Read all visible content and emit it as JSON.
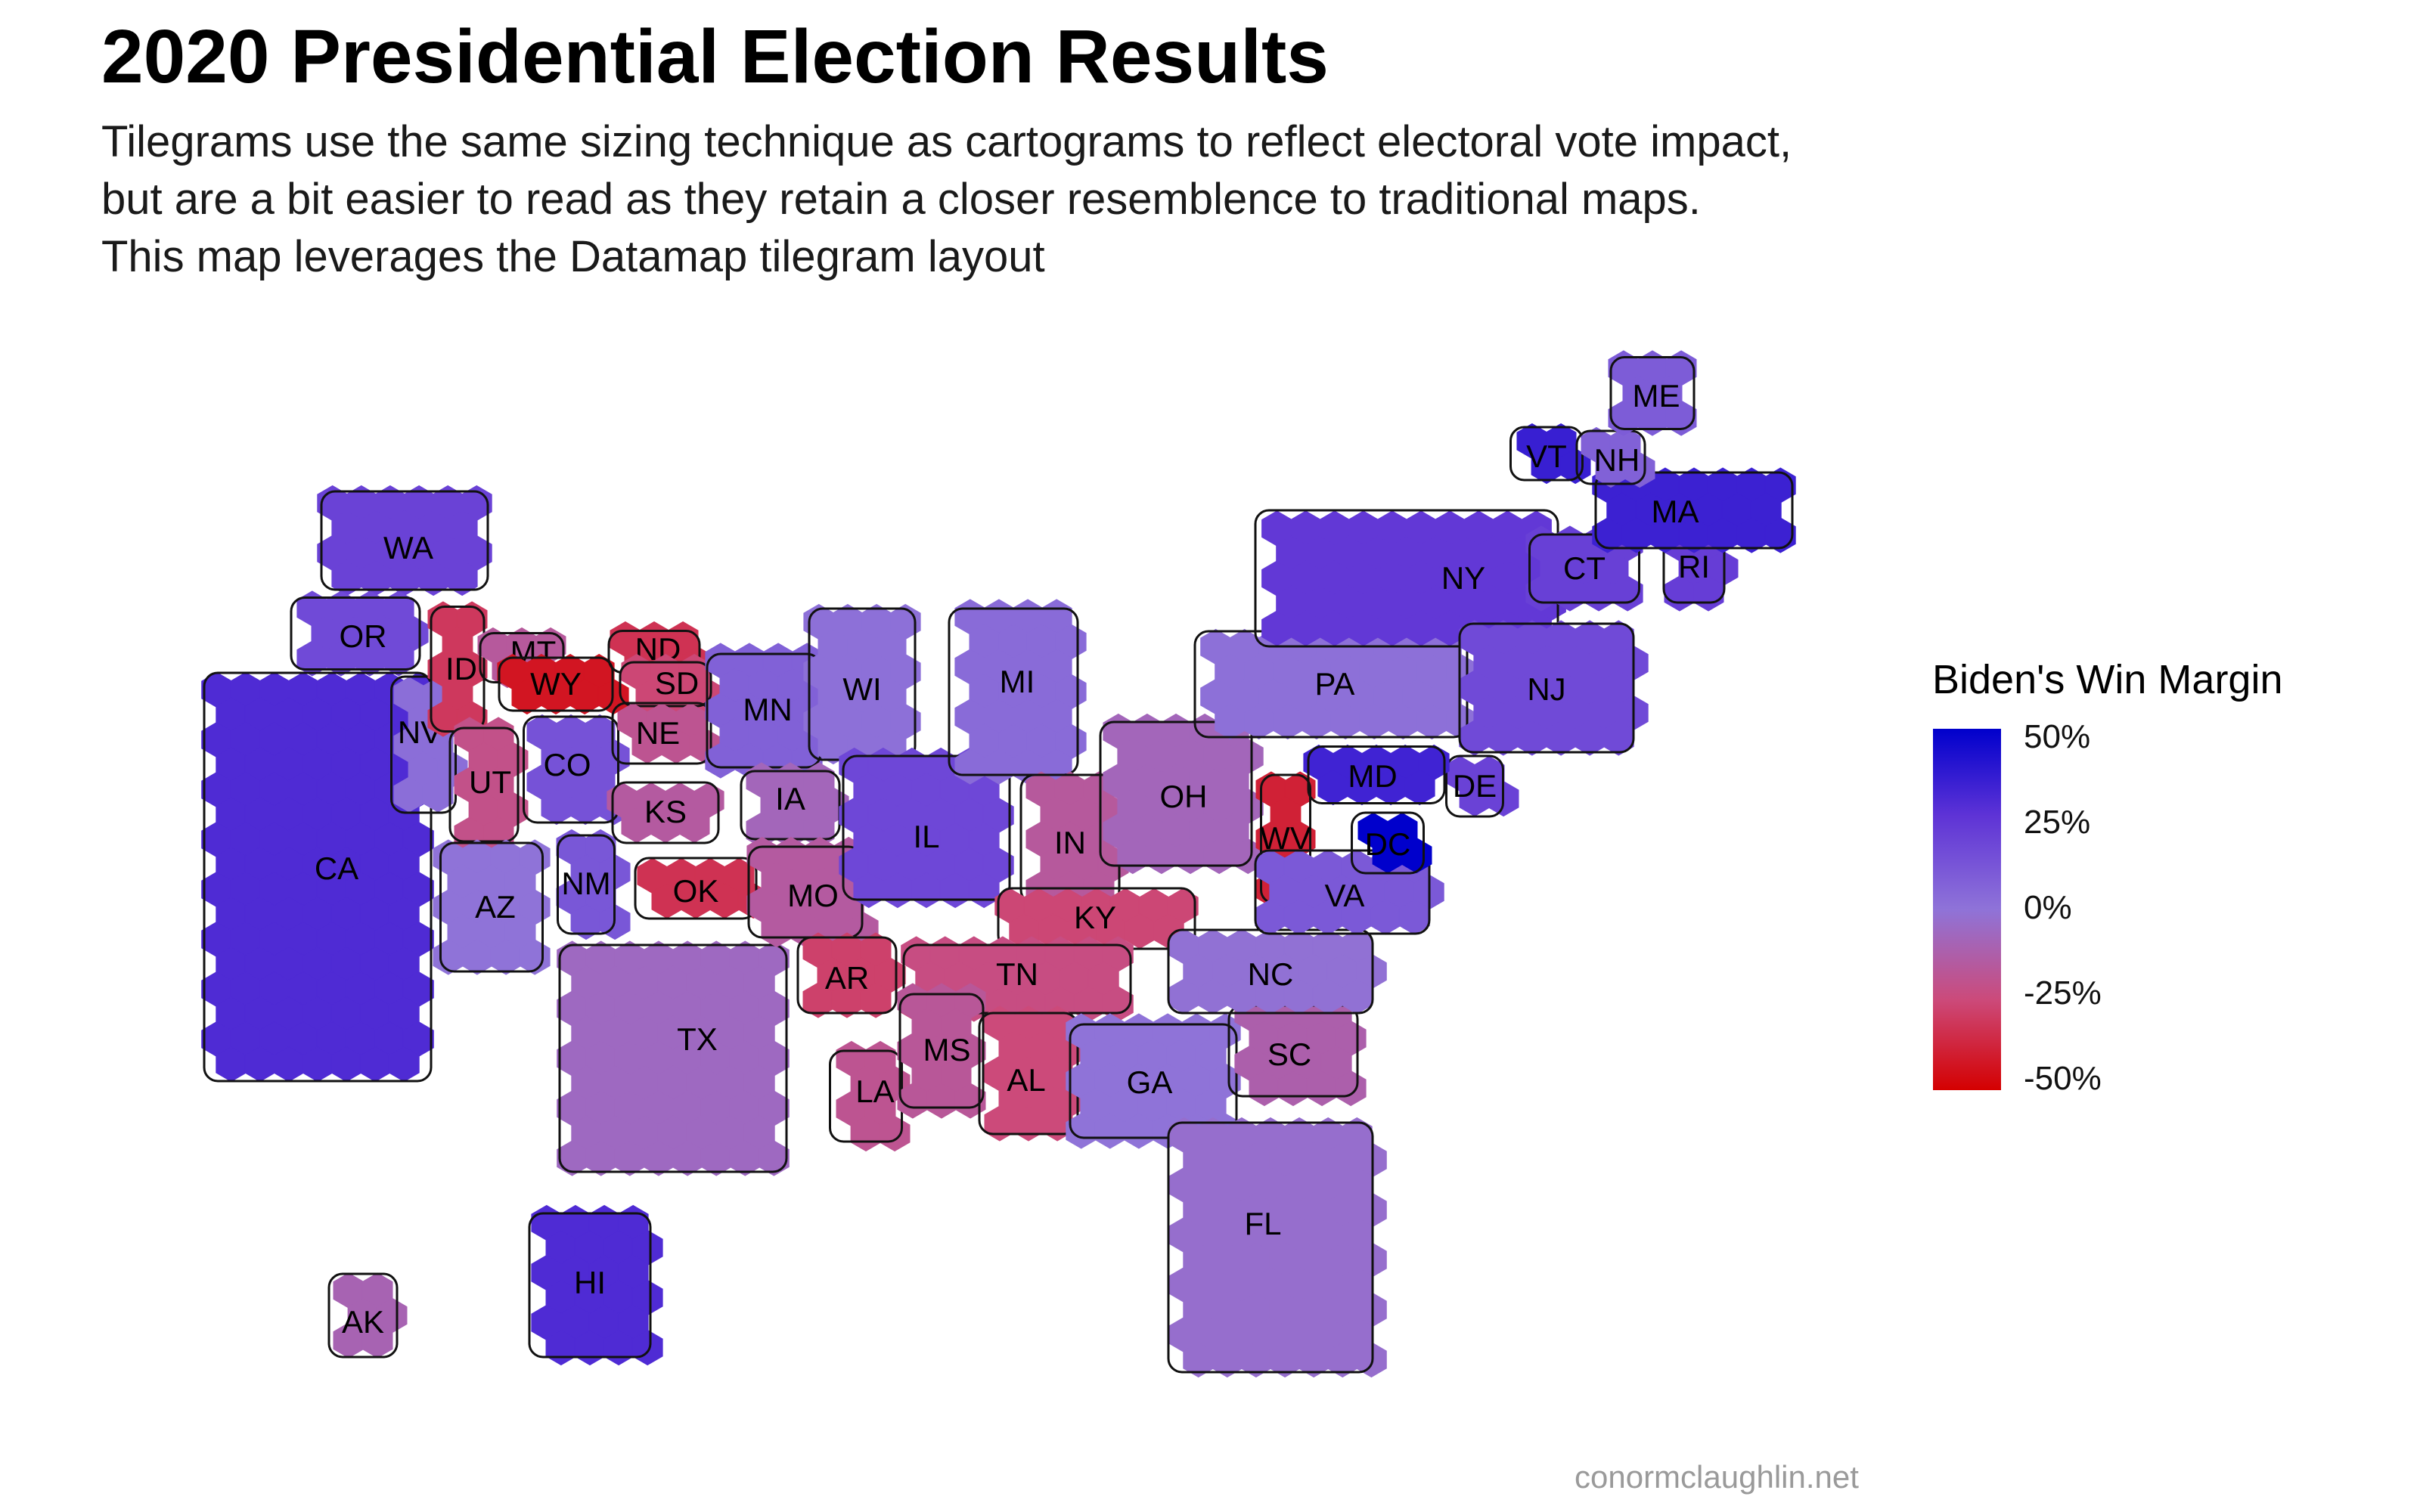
{
  "title": "2020 Presidential Election Results",
  "subtitle": [
    "Tilegrams use the same sizing technique as cartograms to reflect electoral vote impact,",
    "but are a bit easier to read as they retain a closer resemblence to traditional maps.",
    "This map leverages the Datamap tilegram layout"
  ],
  "legend": {
    "title": "Biden's Win Margin",
    "ticks": [
      "50%",
      "25%",
      "0%",
      "-25%",
      "-50%"
    ],
    "colors": {
      "high": "#0000cc",
      "mid": "#8f73d8",
      "low": "#d40000"
    }
  },
  "source": "conormclaughlin.net",
  "states": [
    {
      "abbr": "WA",
      "margin": 19
    },
    {
      "abbr": "OR",
      "margin": 16
    },
    {
      "abbr": "CA",
      "margin": 29
    },
    {
      "abbr": "NV",
      "margin": 2
    },
    {
      "abbr": "ID",
      "margin": -31
    },
    {
      "abbr": "MT",
      "margin": -16
    },
    {
      "abbr": "WY",
      "margin": -43
    },
    {
      "abbr": "UT",
      "margin": -21
    },
    {
      "abbr": "AZ",
      "margin": 0
    },
    {
      "abbr": "CO",
      "margin": 13
    },
    {
      "abbr": "NM",
      "margin": 11
    },
    {
      "abbr": "ND",
      "margin": -33
    },
    {
      "abbr": "SD",
      "margin": -26
    },
    {
      "abbr": "NE",
      "margin": -19
    },
    {
      "abbr": "KS",
      "margin": -15
    },
    {
      "abbr": "OK",
      "margin": -33
    },
    {
      "abbr": "TX",
      "margin": -6
    },
    {
      "abbr": "MN",
      "margin": 7
    },
    {
      "abbr": "IA",
      "margin": -8
    },
    {
      "abbr": "MO",
      "margin": -15
    },
    {
      "abbr": "AR",
      "margin": -28
    },
    {
      "abbr": "LA",
      "margin": -19
    },
    {
      "abbr": "WI",
      "margin": 1
    },
    {
      "abbr": "IL",
      "margin": 17
    },
    {
      "abbr": "MI",
      "margin": 3
    },
    {
      "abbr": "IN",
      "margin": -16
    },
    {
      "abbr": "KY",
      "margin": -26
    },
    {
      "abbr": "TN",
      "margin": -23
    },
    {
      "abbr": "MS",
      "margin": -17
    },
    {
      "abbr": "AL",
      "margin": -25
    },
    {
      "abbr": "OH",
      "margin": -8
    },
    {
      "abbr": "WV",
      "margin": -39
    },
    {
      "abbr": "GA",
      "margin": 0
    },
    {
      "abbr": "FL",
      "margin": -3
    },
    {
      "abbr": "SC",
      "margin": -12
    },
    {
      "abbr": "NC",
      "margin": -1
    },
    {
      "abbr": "VA",
      "margin": 10
    },
    {
      "abbr": "PA",
      "margin": 1
    },
    {
      "abbr": "NY",
      "margin": 23
    },
    {
      "abbr": "NJ",
      "margin": 16
    },
    {
      "abbr": "DE",
      "margin": 19
    },
    {
      "abbr": "MD",
      "margin": 33
    },
    {
      "abbr": "DC",
      "margin": 87
    },
    {
      "abbr": "CT",
      "margin": 20
    },
    {
      "abbr": "RI",
      "margin": 21
    },
    {
      "abbr": "MA",
      "margin": 34
    },
    {
      "abbr": "VT",
      "margin": 35
    },
    {
      "abbr": "NH",
      "margin": 7
    },
    {
      "abbr": "ME",
      "margin": 9
    },
    {
      "abbr": "AK",
      "margin": -10
    },
    {
      "abbr": "HI",
      "margin": 29
    }
  ]
}
